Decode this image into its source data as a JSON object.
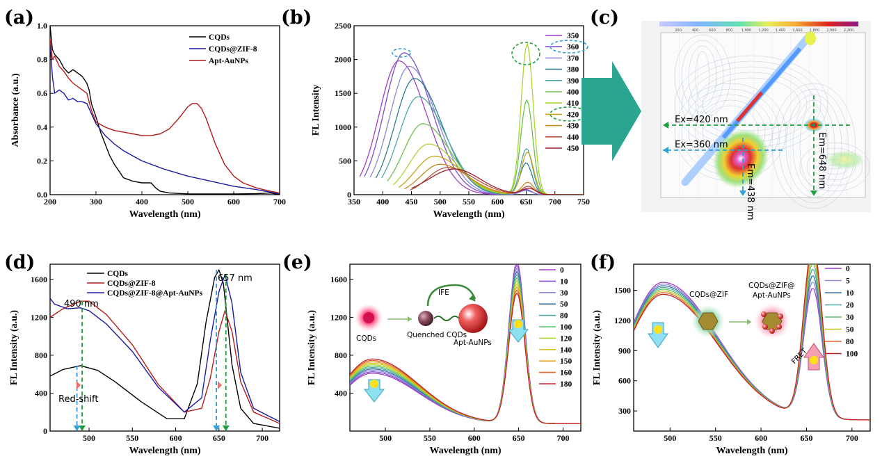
{
  "panel_labels": [
    "(a)",
    "(b)",
    "(c)",
    "(d)",
    "(e)",
    "(f)"
  ],
  "colors": {
    "black": "#000000",
    "navy": "#1a1aa0",
    "red": "#b31b1b",
    "arrow_teal": "#2aa58f",
    "dash_green": "#1e9e3c",
    "dash_blue": "#2f9fd8",
    "palette_b": [
      "#a23cc4",
      "#7a4ec9",
      "#8a8ad6",
      "#2e7d8e",
      "#4ea6a6",
      "#6bc14d",
      "#a9d431",
      "#c9a416",
      "#c88b22",
      "#b5573e",
      "#9d1e2b",
      "#1a2b7a"
    ],
    "palette_ef": [
      "#a23cc4",
      "#8250d0",
      "#8a8ad6",
      "#3a6fa0",
      "#4ea6a6",
      "#59c26a",
      "#a9d431",
      "#d6c11a",
      "#e0a21a",
      "#d8672a",
      "#c0252b"
    ]
  },
  "chart_data": [
    {
      "id": "a",
      "type": "line",
      "xlabel": "Wavelength (nm)",
      "ylabel": "Absorbance (a.u.)",
      "xlim": [
        200,
        700
      ],
      "ylim": [
        0,
        1.0
      ],
      "xticks": [
        200,
        300,
        400,
        500,
        600,
        700
      ],
      "yticks": [
        0.0,
        0.2,
        0.4,
        0.6,
        0.8,
        1.0
      ],
      "legend_position": "top-right",
      "series": [
        {
          "name": "CQDs",
          "color": "#000000",
          "x": [
            200,
            205,
            210,
            220,
            230,
            240,
            250,
            260,
            270,
            280,
            285,
            290,
            300,
            310,
            320,
            330,
            340,
            350,
            360,
            380,
            400,
            420,
            430,
            440,
            460,
            500,
            550,
            600,
            650,
            680,
            700
          ],
          "y": [
            1.0,
            0.86,
            0.83,
            0.8,
            0.75,
            0.72,
            0.74,
            0.72,
            0.7,
            0.66,
            0.62,
            0.54,
            0.46,
            0.37,
            0.3,
            0.23,
            0.18,
            0.14,
            0.1,
            0.08,
            0.07,
            0.07,
            0.04,
            0.02,
            0.01,
            0.005,
            0.004,
            0.004,
            0.006,
            0.01,
            0.0
          ]
        },
        {
          "name": "CQDs@ZIF-8",
          "color": "#1a1aa0",
          "x": [
            200,
            205,
            210,
            220,
            230,
            240,
            250,
            260,
            270,
            280,
            290,
            300,
            320,
            340,
            360,
            380,
            400,
            420,
            450,
            500,
            550,
            600,
            650,
            680,
            700
          ],
          "y": [
            0.9,
            0.7,
            0.6,
            0.62,
            0.6,
            0.56,
            0.57,
            0.55,
            0.55,
            0.54,
            0.48,
            0.42,
            0.35,
            0.3,
            0.26,
            0.23,
            0.2,
            0.18,
            0.15,
            0.11,
            0.08,
            0.05,
            0.03,
            0.015,
            0.005
          ]
        },
        {
          "name": "Apt-AuNPs",
          "color": "#b31b1b",
          "x": [
            200,
            205,
            210,
            220,
            230,
            240,
            250,
            260,
            270,
            280,
            290,
            300,
            320,
            340,
            360,
            380,
            400,
            420,
            440,
            460,
            480,
            500,
            510,
            520,
            530,
            540,
            560,
            580,
            600,
            620,
            650,
            680,
            700
          ],
          "y": [
            0.92,
            0.8,
            0.82,
            0.76,
            0.73,
            0.69,
            0.66,
            0.64,
            0.62,
            0.6,
            0.5,
            0.43,
            0.4,
            0.38,
            0.37,
            0.36,
            0.35,
            0.35,
            0.36,
            0.39,
            0.45,
            0.52,
            0.54,
            0.54,
            0.51,
            0.45,
            0.3,
            0.18,
            0.11,
            0.07,
            0.04,
            0.02,
            0.01
          ]
        }
      ]
    },
    {
      "id": "b",
      "type": "line",
      "xlabel": "Wavelength (nm)",
      "ylabel": "FL Intensity",
      "xlim": [
        350,
        750
      ],
      "ylim": [
        0,
        2500
      ],
      "xticks": [
        350,
        400,
        450,
        500,
        550,
        600,
        650,
        700,
        750
      ],
      "yticks": [
        0,
        500,
        1000,
        1500,
        2000,
        2500
      ],
      "legend_position": "right",
      "legend_entries": [
        "350",
        "360",
        "370",
        "380",
        "390",
        "400",
        "410",
        "420",
        "430",
        "440",
        "450"
      ],
      "peaks": [
        {
          "label": "350",
          "start": 360,
          "peak_x": 428,
          "peak_y": 1980,
          "red_peak_y": 80
        },
        {
          "label": "360",
          "start": 368,
          "peak_x": 437,
          "peak_y": 2100,
          "red_peak_y": 70
        },
        {
          "label": "370",
          "start": 378,
          "peak_x": 446,
          "peak_y": 1900,
          "red_peak_y": 60
        },
        {
          "label": "380",
          "start": 388,
          "peak_x": 455,
          "peak_y": 1720,
          "red_peak_y": 470
        },
        {
          "label": "390",
          "start": 398,
          "peak_x": 462,
          "peak_y": 1450,
          "red_peak_y": 680
        },
        {
          "label": "400",
          "start": 408,
          "peak_x": 470,
          "peak_y": 1050,
          "red_peak_y": 1400
        },
        {
          "label": "410",
          "start": 418,
          "peak_x": 480,
          "peak_y": 750,
          "red_peak_y": 2230
        },
        {
          "label": "420",
          "start": 428,
          "peak_x": 490,
          "peak_y": 570,
          "red_peak_y": 630
        },
        {
          "label": "430",
          "start": 438,
          "peak_x": 500,
          "peak_y": 450,
          "red_peak_y": 180
        },
        {
          "label": "440",
          "start": 448,
          "peak_x": 512,
          "peak_y": 400,
          "red_peak_y": 120
        }
      ]
    },
    {
      "id": "c",
      "type": "heatmap",
      "annotations": [
        "Ex=420 nm",
        "Ex=360 nm",
        "Em=438 nm",
        "Em=648 nm"
      ],
      "colorbar_ticks": [
        "200",
        "400",
        "600",
        "800",
        "1,000",
        "1,200",
        "1,400",
        "1,600",
        "1,800",
        "2,000",
        "2,200"
      ]
    },
    {
      "id": "d",
      "type": "line",
      "xlabel": "Wavelength (nm)",
      "ylabel": "FL Intensity (a.u.)",
      "xlim": [
        455,
        720
      ],
      "ylim": [
        0,
        1760
      ],
      "xticks": [
        500,
        550,
        600,
        650,
        700
      ],
      "yticks": [
        0,
        400,
        800,
        1200,
        1600
      ],
      "legend_position": "top-center",
      "annotations": [
        "490 nm",
        "657 nm",
        "Red-shift"
      ],
      "series": [
        {
          "name": "CQDs",
          "color": "#000000",
          "x": [
            455,
            470,
            490,
            510,
            530,
            560,
            590,
            610,
            625,
            635,
            645,
            650,
            655,
            665,
            675,
            690,
            720
          ],
          "y": [
            580,
            650,
            690,
            640,
            520,
            310,
            130,
            130,
            500,
            1150,
            1620,
            1700,
            1560,
            700,
            240,
            80,
            30
          ]
        },
        {
          "name": "CQDs@ZIF-8",
          "color": "#b31b1b",
          "x": [
            455,
            470,
            490,
            500,
            520,
            550,
            580,
            610,
            630,
            640,
            650,
            657,
            665,
            675,
            690,
            720
          ],
          "y": [
            1200,
            1290,
            1370,
            1370,
            1230,
            910,
            490,
            200,
            240,
            560,
            1050,
            1270,
            1050,
            520,
            200,
            80
          ]
        },
        {
          "name": "CQDs@ZIF-8@Apt-AuNPs",
          "color": "#1a1aa0",
          "x": [
            455,
            460,
            475,
            490,
            500,
            520,
            550,
            580,
            610,
            630,
            640,
            650,
            657,
            665,
            675,
            690,
            720
          ],
          "y": [
            1400,
            1340,
            1290,
            1300,
            1270,
            1130,
            840,
            460,
            200,
            350,
            960,
            1470,
            1650,
            1350,
            620,
            240,
            100
          ]
        }
      ]
    },
    {
      "id": "e",
      "type": "line",
      "xlabel": "Wavelength (nm)",
      "ylabel": "FL Intensity (a.u.)",
      "xlim": [
        460,
        720
      ],
      "ylim": [
        0,
        1760
      ],
      "xticks": [
        500,
        550,
        600,
        650,
        700
      ],
      "yticks": [
        400,
        800,
        1200,
        1600
      ],
      "legend_position": "top-right",
      "legend_entries": [
        "0",
        "10",
        "30",
        "50",
        "80",
        "100",
        "120",
        "140",
        "150",
        "160",
        "180"
      ],
      "short_peak_range": [
        530,
        680
      ],
      "red_peak_range": [
        1700,
        1370
      ],
      "labels": [
        "CQDs",
        "Quenched CQDs",
        "Apt-AuNPs",
        "IFE"
      ]
    },
    {
      "id": "f",
      "type": "line",
      "xlabel": "Wavelength (nm)",
      "ylabel": "FL Intensity (a.u.)",
      "xlim": [
        460,
        720
      ],
      "ylim": [
        100,
        1760
      ],
      "xticks": [
        500,
        550,
        600,
        650,
        700
      ],
      "yticks": [
        300,
        600,
        900,
        1200,
        1500
      ],
      "legend_position": "top-right",
      "legend_entries": [
        "0",
        "5",
        "10",
        "20",
        "30",
        "50",
        "80",
        "100"
      ],
      "short_peak_range": [
        1370,
        1250
      ],
      "red_peak_range": [
        1280,
        1730
      ],
      "labels": [
        "CQDs@ZIF",
        "CQDs@ZIF@",
        "Apt-AuNPs",
        "FRET"
      ]
    }
  ]
}
